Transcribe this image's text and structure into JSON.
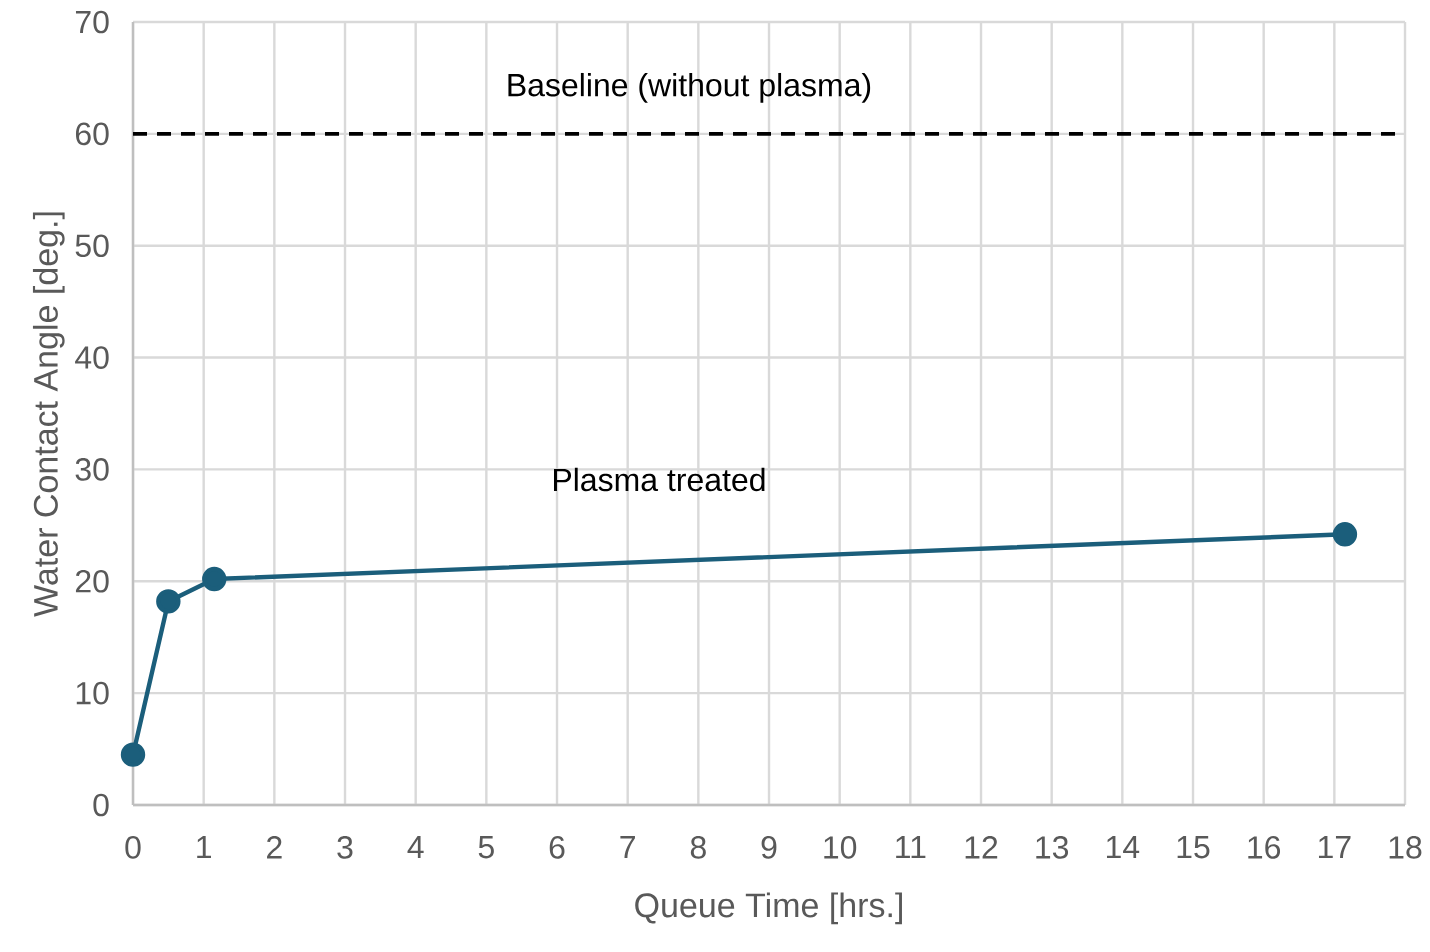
{
  "chart_data": {
    "type": "line",
    "xlabel": "Queue Time [hrs.]",
    "ylabel": "Water Contact Angle [deg.]",
    "annotations": [
      "Plasma treated"
    ],
    "series": [
      {
        "color": "#1b5e7b",
        "x": [
          0,
          0.5,
          1.15,
          17.15
        ],
        "values": [
          4.5,
          18.2,
          20.2,
          24.2
        ]
      }
    ],
    "xlim": [
      0,
      18
    ],
    "xticks": [
      0,
      1,
      2,
      3,
      4,
      5,
      6,
      7,
      8,
      9,
      10,
      11,
      12,
      13,
      14,
      15,
      16,
      17,
      18
    ],
    "ylim": [
      0,
      70
    ],
    "yticks": [
      0,
      10,
      20,
      30,
      40,
      50,
      60,
      70
    ],
    "ref_lines": [
      {
        "axis": "y",
        "value": 60,
        "label": "Baseline (without plasma)",
        "color": "#000000",
        "line_style": "dashed"
      }
    ],
    "grid": true,
    "marker": "circle",
    "line_style": "solid"
  }
}
